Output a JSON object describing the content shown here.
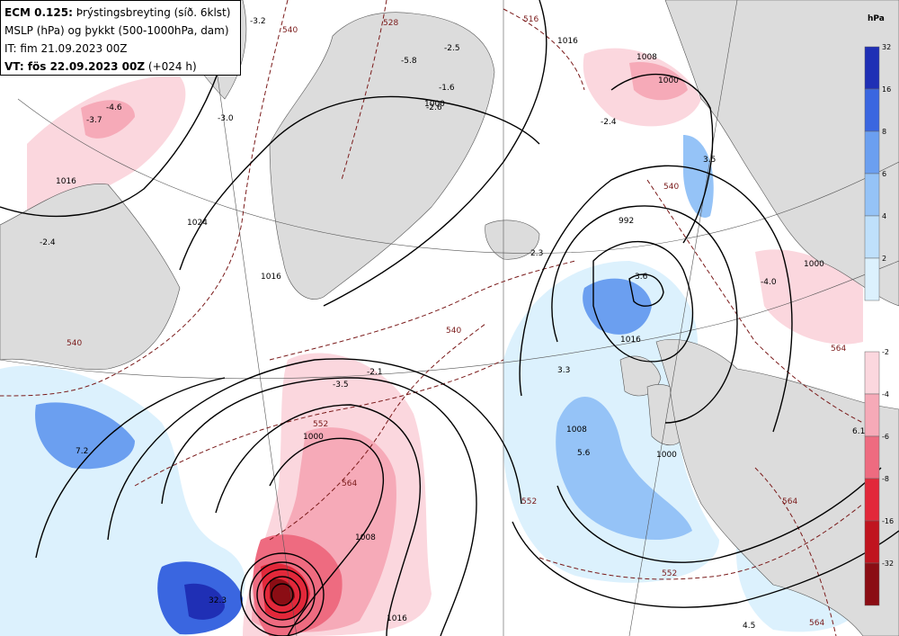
{
  "header": {
    "model": "ECM 0.125:",
    "title_rest": "Þrýstingsbreyting (síð. 6klst)",
    "line2": "MSLP (hPa) og þykkt (500-1000hPa, dam)",
    "line3": "IT: fim 21.09.2023 00Z",
    "vt_label": "VT: fös 22.09.2023 00Z",
    "vt_offset": "(+024 h)"
  },
  "legend": {
    "unit": "hPa",
    "positive": {
      "labels": [
        "32",
        "16",
        "8",
        "6",
        "4",
        "2"
      ],
      "colors": [
        "#1f2fb5",
        "#3a66e0",
        "#6b9ff0",
        "#95c3f7",
        "#bfe0fb",
        "#dcf1fd"
      ]
    },
    "negative": {
      "labels": [
        "-2",
        "-4",
        "-6",
        "-8",
        "-16",
        "-32"
      ],
      "colors": [
        "#fbd7de",
        "#f6aab8",
        "#ee6b80",
        "#e2283a",
        "#c0141f",
        "#8b0d14"
      ]
    }
  },
  "map": {
    "colors": {
      "land": "#dcdcdc",
      "isobar": "#000000",
      "thickness": "#7a1a1a",
      "rise": "#bfe0fb",
      "fall": "#f6aab8"
    },
    "isobar_labels": [
      "1016",
      "1024",
      "1016",
      "1000",
      "1008",
      "1016",
      "1008",
      "1000",
      "1016",
      "1008",
      "1000",
      "992",
      "1016",
      "1000",
      "1000"
    ],
    "thickness_labels": [
      "540",
      "528",
      "516",
      "540",
      "540",
      "552",
      "564",
      "552",
      "564",
      "540",
      "564",
      "552",
      "564"
    ],
    "tendency_labels": [
      "-3.2",
      "-2.5",
      "-5.8",
      "-3.7",
      "-4.6",
      "-3.0",
      "-2.4",
      "-2.6",
      "-1.6",
      "3.6",
      "-2.4",
      "-4.0",
      "3.5",
      "3.3",
      "-3.5",
      "-2.1",
      "7.2",
      "5.6",
      "6.1",
      "32.3",
      "4.5",
      "2.3"
    ]
  }
}
